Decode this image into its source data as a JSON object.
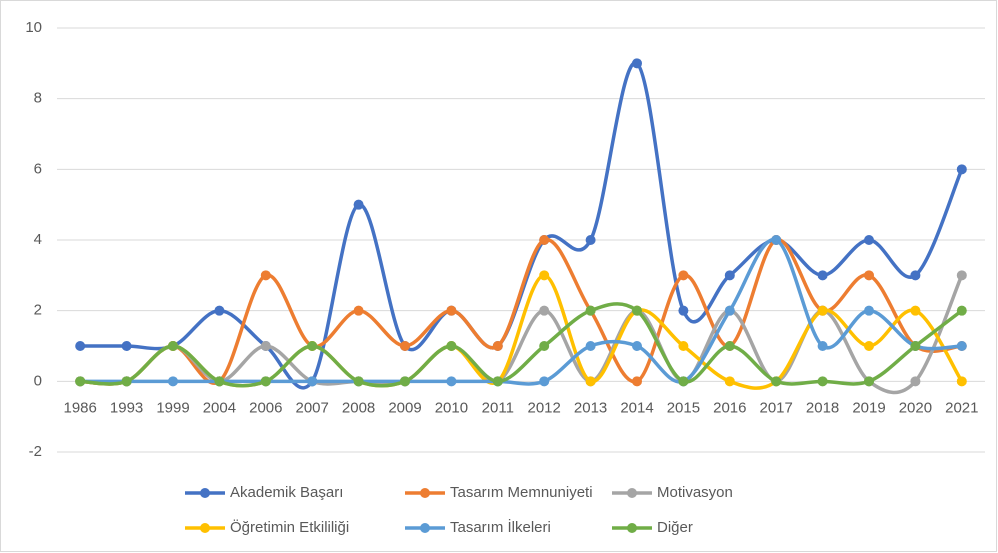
{
  "chart_data": {
    "type": "line",
    "smooth": true,
    "legend": "bottom",
    "grid": true,
    "categories": [
      "1986",
      "1993",
      "1999",
      "2004",
      "2006",
      "2007",
      "2008",
      "2009",
      "2010",
      "2011",
      "2012",
      "2013",
      "2014",
      "2015",
      "2016",
      "2017",
      "2018",
      "2019",
      "2020",
      "2021"
    ],
    "ylim": [
      -2,
      10
    ],
    "yticks": [
      -2,
      0,
      2,
      4,
      6,
      8,
      10
    ],
    "series": [
      {
        "name": "Akademik Başarı",
        "color": "#4472c4",
        "values": [
          1,
          1,
          1,
          2,
          1,
          0,
          5,
          1,
          2,
          1,
          4,
          4,
          9,
          2,
          3,
          4,
          3,
          4,
          3,
          6
        ]
      },
      {
        "name": "Tasarım Memnuniyeti",
        "color": "#ed7d31",
        "values": [
          0,
          0,
          1,
          0,
          3,
          1,
          2,
          1,
          2,
          1,
          4,
          2,
          0,
          3,
          1,
          4,
          2,
          3,
          1,
          1
        ]
      },
      {
        "name": "Motivasyon",
        "color": "#a5a5a5",
        "values": [
          0,
          0,
          1,
          0,
          1,
          0,
          0,
          0,
          1,
          0,
          2,
          0,
          2,
          0,
          2,
          0,
          2,
          0,
          0,
          3
        ]
      },
      {
        "name": "Öğretimin Etkililiği",
        "color": "#ffc000",
        "values": [
          0,
          0,
          1,
          0,
          0,
          1,
          0,
          0,
          1,
          0,
          3,
          0,
          2,
          1,
          0,
          0,
          2,
          1,
          2,
          0
        ]
      },
      {
        "name": "Tasarım İlkeleri",
        "color": "#5b9bd5",
        "values": [
          0,
          0,
          0,
          0,
          0,
          0,
          0,
          0,
          0,
          0,
          0,
          1,
          1,
          0,
          2,
          4,
          1,
          2,
          1,
          1
        ]
      },
      {
        "name": "Diğer",
        "color": "#70ad47",
        "values": [
          0,
          0,
          1,
          0,
          0,
          1,
          0,
          0,
          1,
          0,
          1,
          2,
          2,
          0,
          1,
          0,
          0,
          0,
          1,
          2
        ]
      }
    ]
  }
}
